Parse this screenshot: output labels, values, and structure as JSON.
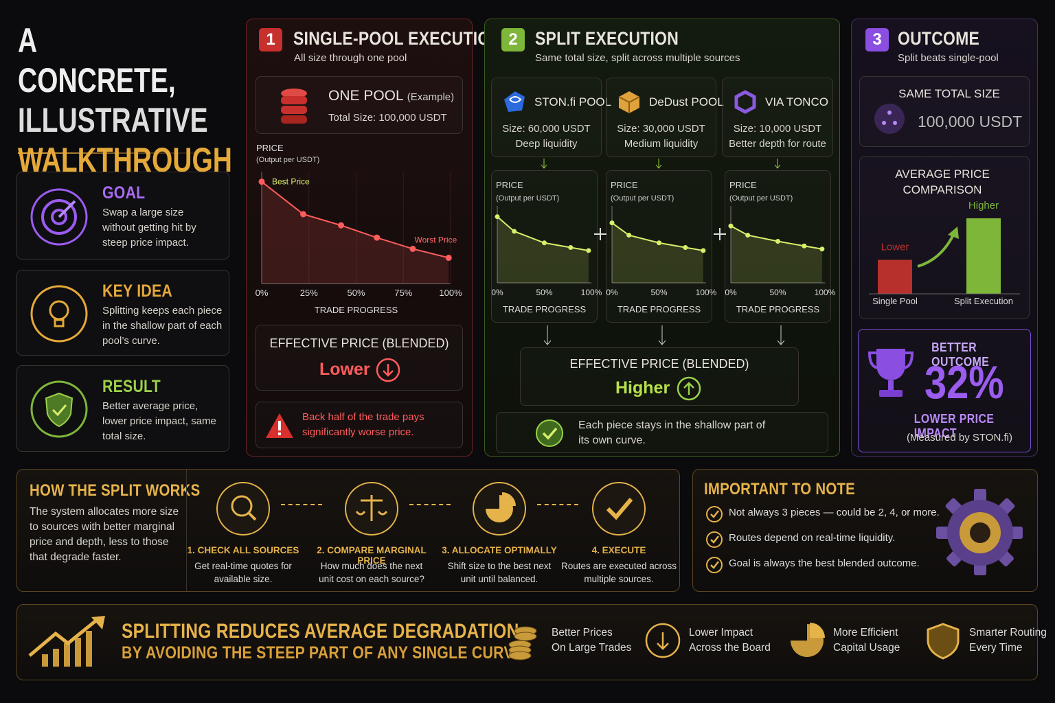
{
  "title": {
    "line1": "A CONCRETE,",
    "line2": "ILLUSTRATIVE",
    "line3": "WALKTHROUGH"
  },
  "sidebar": [
    {
      "title": "GOAL",
      "text": "Swap a large size without getting hit by steep price impact."
    },
    {
      "title": "KEY IDEA",
      "text": "Splitting keeps each piece in the shallow part of each pool’s curve."
    },
    {
      "title": "RESULT",
      "text": "Better average price, lower price impact, same total size."
    }
  ],
  "single_pool": {
    "number": "1",
    "title": "SINGLE-POOL EXECUTION",
    "subtitle": "All size through one pool",
    "pool_name": "ONE POOL",
    "pool_note": "(Example)",
    "pool_size": "Total Size: 100,000 USDT",
    "chart": {
      "type": "line",
      "y_label": "PRICE",
      "y_sublabel": "(Output per USDT)",
      "x_label": "TRADE PROGRESS",
      "best_label": "Best Price",
      "worst_label": "Worst Price",
      "xlim": [
        0,
        100
      ],
      "ylim": [
        0,
        100
      ],
      "xticks": [
        {
          "value": 0,
          "label": "0%"
        },
        {
          "value": 25,
          "label": "25%"
        },
        {
          "value": 50,
          "label": "50%"
        },
        {
          "value": 75,
          "label": "75%"
        },
        {
          "value": 100,
          "label": "100%"
        }
      ],
      "x": [
        0,
        22,
        42,
        61,
        80,
        99
      ],
      "values": [
        91,
        62,
        52,
        41,
        31,
        23
      ],
      "color": "#ff5c5c",
      "grid": true
    },
    "effective_label": "EFFECTIVE PRICE (BLENDED)",
    "effective_value": "Lower",
    "warning": "Back half of the trade pays significantly worse price."
  },
  "split": {
    "number": "2",
    "title": "SPLIT EXECUTION",
    "subtitle": "Same total size, split across multiple sources",
    "sources": [
      {
        "name": "STON.fi POOL",
        "size": "Size: 60,000 USDT",
        "note": "Deep liquidity"
      },
      {
        "name": "DeDust POOL",
        "size": "Size: 30,000 USDT",
        "note": "Medium liquidity"
      },
      {
        "name": "VIA TONCO",
        "size": "Size: 10,000 USDT",
        "note": "Better depth for route"
      }
    ],
    "charts": [
      {
        "type": "line",
        "y_label": "PRICE",
        "y_sublabel": "(Output per USDT)",
        "x_label": "TRADE PROGRESS",
        "xlim": [
          0,
          100
        ],
        "ylim": [
          0,
          100
        ],
        "xticks": [
          {
            "value": 0,
            "label": "0%"
          },
          {
            "value": 50,
            "label": "50%"
          },
          {
            "value": 100,
            "label": "100%"
          }
        ],
        "x": [
          0,
          18,
          50,
          78,
          97
        ],
        "values": [
          86,
          67,
          52,
          46,
          42
        ],
        "color": "#d8ef6a"
      },
      {
        "type": "line",
        "y_label": "PRICE",
        "y_sublabel": "(Output per USDT)",
        "x_label": "TRADE PROGRESS",
        "xlim": [
          0,
          100
        ],
        "ylim": [
          0,
          100
        ],
        "xticks": [
          {
            "value": 0,
            "label": "0%"
          },
          {
            "value": 50,
            "label": "50%"
          },
          {
            "value": 100,
            "label": "100%"
          }
        ],
        "x": [
          0,
          18,
          50,
          78,
          97
        ],
        "values": [
          78,
          62,
          52,
          46,
          42
        ],
        "color": "#d8ef6a"
      },
      {
        "type": "line",
        "y_label": "PRICE",
        "y_sublabel": "(Output per USDT)",
        "x_label": "TRADE PROGRESS",
        "xlim": [
          0,
          100
        ],
        "ylim": [
          0,
          100
        ],
        "xticks": [
          {
            "value": 0,
            "label": "0%"
          },
          {
            "value": 50,
            "label": "50%"
          },
          {
            "value": 100,
            "label": "100%"
          }
        ],
        "x": [
          0,
          18,
          50,
          78,
          97
        ],
        "values": [
          74,
          62,
          54,
          48,
          44
        ],
        "color": "#d8ef6a"
      }
    ],
    "effective_label": "EFFECTIVE PRICE (BLENDED)",
    "effective_value": "Higher",
    "note": "Each piece stays in the shallow part of its own curve."
  },
  "outcome": {
    "number": "3",
    "title": "OUTCOME",
    "subtitle": "Split beats single-pool",
    "total_label": "SAME TOTAL SIZE",
    "total_value": "100,000 USDT",
    "comparison": {
      "type": "bar",
      "title": "AVERAGE PRICE COMPARISON",
      "categories": [
        "Single Pool",
        "Split Execution"
      ],
      "value_labels": [
        "Lower",
        "Higher"
      ],
      "values": [
        45,
        100
      ],
      "ylim": [
        0,
        100
      ],
      "colors": [
        "#b8302c",
        "#7eb63a"
      ]
    },
    "better_label": "BETTER OUTCOME",
    "percent": "32%",
    "impact_label": "LOWER PRICE IMPACT",
    "measured": "(Measured by STON.fi)"
  },
  "how": {
    "title": "HOW THE SPLIT WORKS",
    "text": "The system allocates more size to sources with better marginal price and depth, less to those that degrade faster.",
    "steps": [
      {
        "title": "1. CHECK ALL SOURCES",
        "text": "Get real-time quotes for available size."
      },
      {
        "title": "2. COMPARE MARGINAL PRICE",
        "text": "How much does the next unit cost on each source?"
      },
      {
        "title": "3. ALLOCATE OPTIMALLY",
        "text": "Shift size to the best next unit until balanced."
      },
      {
        "title": "4. EXECUTE",
        "text": "Routes are executed across multiple sources."
      }
    ]
  },
  "note": {
    "title": "IMPORTANT TO NOTE",
    "items": [
      "Not always 3 pieces — could be 2, 4, or more.",
      "Routes depend on real-time liquidity.",
      "Goal is always the best blended outcome."
    ]
  },
  "footer": {
    "headline1": "SPLITTING REDUCES AVERAGE DEGRADATION",
    "headline2": "BY AVOIDING THE STEEP PART OF ANY SINGLE CURVE.",
    "benefits": [
      {
        "line1": "Better Prices",
        "line2": "On Large Trades"
      },
      {
        "line1": "Lower Impact",
        "line2": "Across the Board"
      },
      {
        "line1": "More Efficient",
        "line2": "Capital Usage"
      },
      {
        "line1": "Smarter Routing",
        "line2": "Every Time"
      }
    ]
  }
}
